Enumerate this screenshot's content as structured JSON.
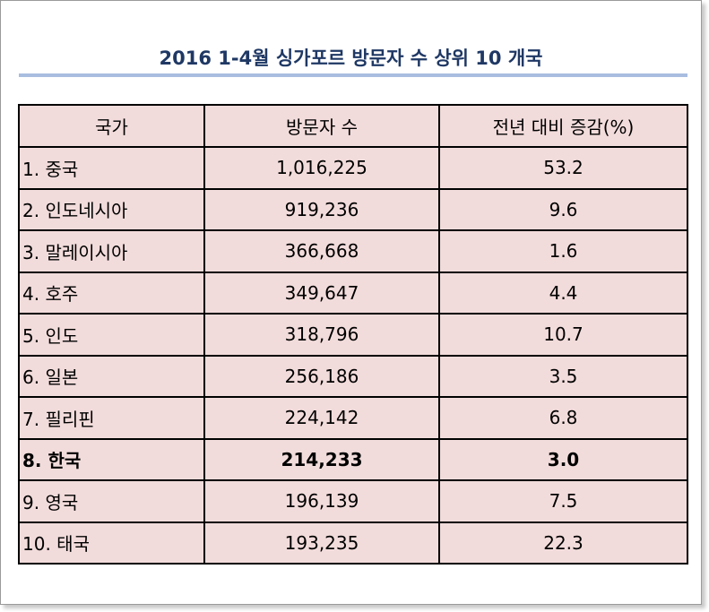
{
  "title": "2016 1-4월 싱가포르 방문자 수 상위 10 개국",
  "table": {
    "headers": [
      "국가",
      "방문자 수",
      "전년 대비 증감(%)"
    ],
    "rows": [
      {
        "country": "1. 중국",
        "visitors": "1,016,225",
        "change": "53.2"
      },
      {
        "country": "2. 인도네시아",
        "visitors": "919,236",
        "change": "9.6"
      },
      {
        "country": "3. 말레이시아",
        "visitors": "366,668",
        "change": "1.6"
      },
      {
        "country": "4. 호주",
        "visitors": "349,647",
        "change": "4.4"
      },
      {
        "country": "5. 인도",
        "visitors": "318,796",
        "change": "10.7"
      },
      {
        "country": "6. 일본",
        "visitors": "256,186",
        "change": "3.5"
      },
      {
        "country": "7. 필리핀",
        "visitors": "224,142",
        "change": "6.8"
      },
      {
        "country": "8. 한국",
        "visitors": "214,233",
        "change": "3.0"
      },
      {
        "country": "9. 영국",
        "visitors": "196,139",
        "change": "7.5"
      },
      {
        "country": "10. 태국",
        "visitors": "193,235",
        "change": "22.3"
      }
    ]
  }
}
